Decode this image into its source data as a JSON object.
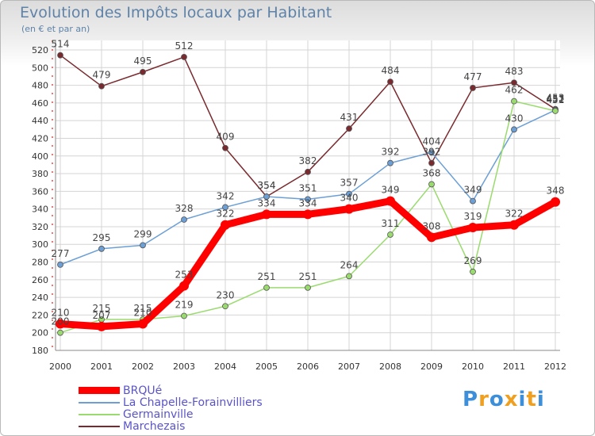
{
  "title": "Evolution des Impôts locaux par Habitant",
  "subtitle": "(en € et par an)",
  "logo_text": "Proxiti",
  "logo_colors": [
    "#3c8fd8",
    "#f0a020",
    "#3c8fd8",
    "#f0a020",
    "#3c8fd8",
    "#f0a020",
    "#3c8fd8"
  ],
  "chart_data": {
    "type": "line",
    "x": [
      "2000",
      "2001",
      "2002",
      "2003",
      "2004",
      "2005",
      "2006",
      "2007",
      "2008",
      "2009",
      "2010",
      "2011",
      "2012"
    ],
    "ylim": [
      180,
      520
    ],
    "yticks": [
      180,
      200,
      220,
      240,
      260,
      280,
      300,
      320,
      340,
      360,
      380,
      400,
      420,
      440,
      460,
      480,
      500,
      520
    ],
    "grid": true,
    "legend_position": "bottom-left",
    "series": [
      {
        "name": "Marchezais",
        "color": "#7a2a2e",
        "values": [
          514,
          479,
          495,
          512,
          409,
          354,
          382,
          431,
          484,
          392,
          477,
          483,
          453
        ]
      },
      {
        "name": "La Chapelle-Forainvilliers",
        "color": "#6b9fd6",
        "values": [
          277,
          295,
          299,
          328,
          342,
          354,
          351,
          357,
          392,
          404,
          349,
          430,
          452
        ]
      },
      {
        "name": "Germainville",
        "color": "#9adb6e",
        "values": [
          200,
          215,
          215,
          219,
          230,
          251,
          251,
          264,
          311,
          368,
          269,
          462,
          451
        ]
      },
      {
        "name": "BRQUé",
        "color": "#ff0000",
        "values": [
          210,
          207,
          210,
          253,
          322,
          334,
          334,
          340,
          349,
          308,
          319,
          322,
          348
        ]
      }
    ],
    "legend_order": [
      "BRQUé",
      "La Chapelle-Forainvilliers",
      "Germainville",
      "Marchezais"
    ]
  }
}
